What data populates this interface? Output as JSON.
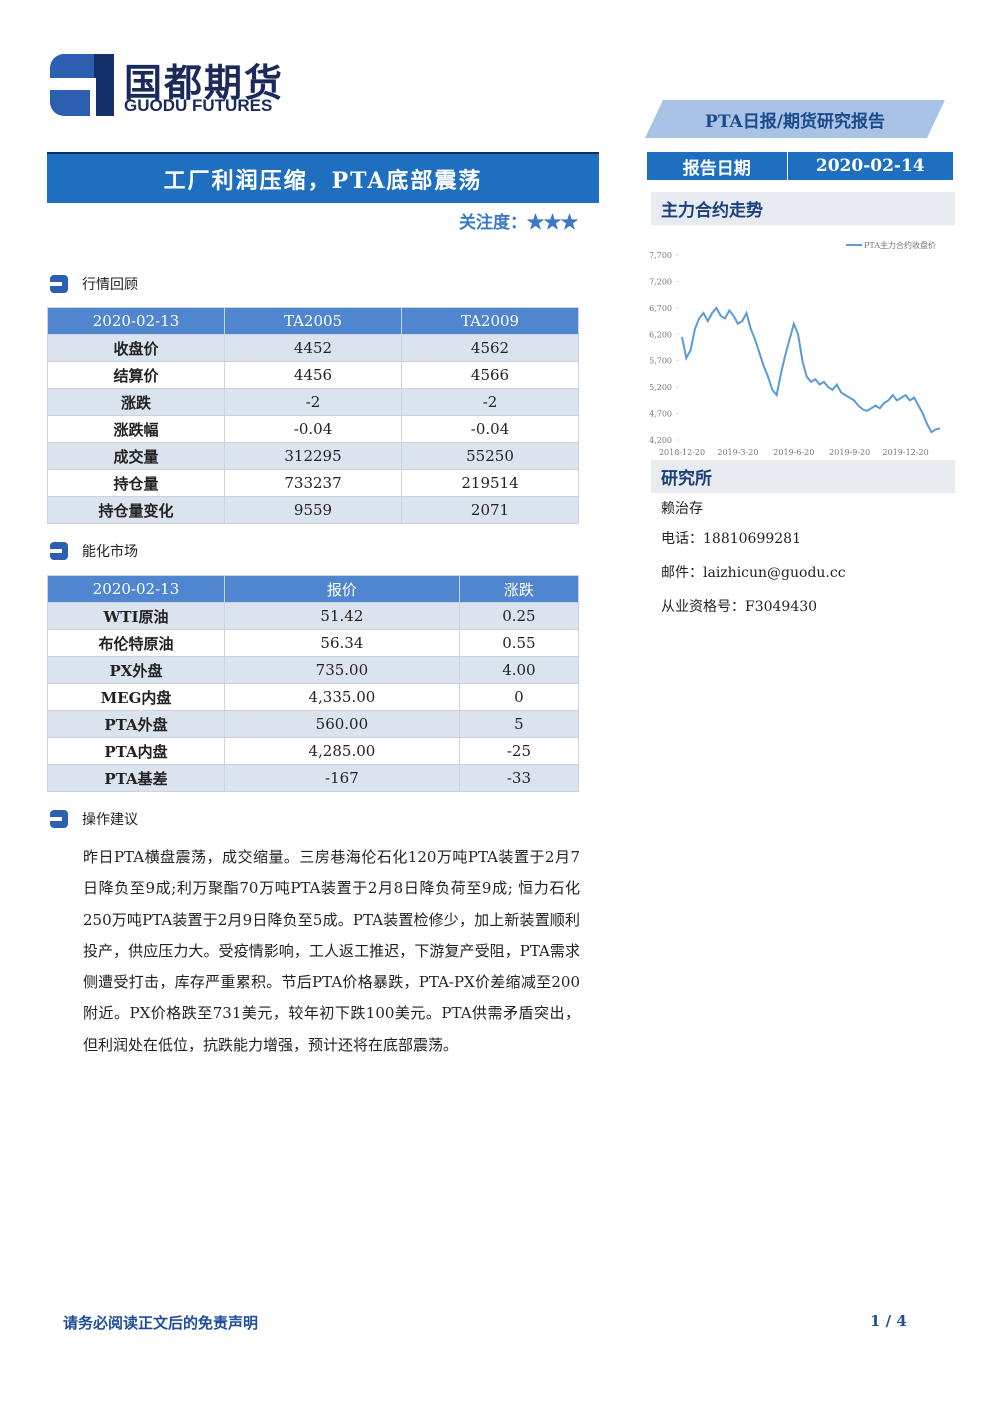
{
  "header": {
    "logo_cn": "国都期货",
    "logo_en": "GUODU FUTURES",
    "report_type": "PTA日报/期货研究报告",
    "date_label": "报告日期",
    "date": "2020-02-14"
  },
  "title": "工厂利润压缩，PTA底部震荡",
  "attention": "关注度：★★★",
  "sections": [
    "行情回顾",
    "能化市场",
    "操作建议"
  ],
  "table1": {
    "header": [
      "2020-02-13",
      "TA2005",
      "TA2009"
    ],
    "rows": [
      [
        "收盘价",
        "4452",
        "4562"
      ],
      [
        "结算价",
        "4456",
        "4566"
      ],
      [
        "涨跌",
        "-2",
        "-2"
      ],
      [
        "涨跌幅",
        "-0.04",
        "-0.04"
      ],
      [
        "成交量",
        "312295",
        "55250"
      ],
      [
        "持仓量",
        "733237",
        "219514"
      ],
      [
        "持仓量变化",
        "9559",
        "2071"
      ]
    ]
  },
  "table2": {
    "header": [
      "2020-02-13",
      "报价",
      "涨跌"
    ],
    "rows": [
      [
        "WTI原油",
        "51.42",
        "0.25"
      ],
      [
        "布伦特原油",
        "56.34",
        "0.55"
      ],
      [
        "PX外盘",
        "735.00",
        "4.00"
      ],
      [
        "MEG内盘",
        "4,335.00",
        "0"
      ],
      [
        "PTA外盘",
        "560.00",
        "5"
      ],
      [
        "PTA内盘",
        "4,285.00",
        "-25"
      ],
      [
        "PTA基差",
        "-167",
        "-33"
      ]
    ]
  },
  "chart": {
    "type": "line",
    "title": "主力合约走势",
    "categories": [
      "2018-12-20",
      null,
      null,
      null,
      null,
      null,
      null,
      null,
      null,
      null,
      null,
      null,
      null,
      "2019-3-20",
      null,
      null,
      null,
      null,
      null,
      null,
      null,
      null,
      null,
      null,
      null,
      null,
      "2019-6-20",
      null,
      null,
      null,
      null,
      null,
      null,
      null,
      null,
      null,
      null,
      null,
      null,
      "2019-9-20",
      null,
      null,
      null,
      null,
      null,
      null,
      null,
      null,
      null,
      null,
      null,
      null,
      "2019-12-20",
      null,
      null,
      null,
      null,
      null,
      null,
      null,
      null
    ],
    "series": [
      {
        "name": "PTA主力合约收盘价",
        "color": "#5b9bd5",
        "values": [
          6150,
          5750,
          5900,
          6300,
          6500,
          6600,
          6450,
          6600,
          6700,
          6550,
          6500,
          6650,
          6550,
          6400,
          6450,
          6600,
          6300,
          6100,
          5850,
          5600,
          5400,
          5150,
          5050,
          5450,
          5800,
          6100,
          6400,
          6200,
          5700,
          5400,
          5300,
          5350,
          5250,
          5300,
          5200,
          5150,
          5250,
          5100,
          5050,
          5000,
          4950,
          4850,
          4780,
          4750,
          4800,
          4850,
          4800,
          4900,
          4950,
          5050,
          4950,
          5000,
          5050,
          4950,
          5000,
          4850,
          4700,
          4500,
          4350,
          4400,
          4420
        ]
      }
    ],
    "ylim": [
      4200,
      7700
    ],
    "yticks": [
      {
        "value": 4200,
        "label": "4,200"
      },
      {
        "value": 4700,
        "label": "4,700"
      },
      {
        "value": 5200,
        "label": "5,200"
      },
      {
        "value": 5700,
        "label": "5,700"
      },
      {
        "value": 6200,
        "label": "6,200"
      },
      {
        "value": 6700,
        "label": "6,700"
      },
      {
        "value": 7200,
        "label": "7,200"
      },
      {
        "value": 7700,
        "label": "7,700"
      }
    ]
  },
  "institute": {
    "title": "研究所",
    "lines": [
      "赖治存",
      "电话：18810699281",
      "邮件：laizhicun@guodu.cc",
      "从业资格号：F3049430"
    ]
  },
  "paragraph": "昨日PTA横盘震荡，成交缩量。三房巷海伦石化120万吨PTA装置于2月7日降负至9成;利万聚酯70万吨PTA装置于2月8日降负荷至9成; 恒力石化250万吨PTA装置于2月9日降负至5成。PTA装置检修少，加上新装置顺利投产，供应压力大。受疫情影响，工人返工推迟，下游复产受阻，PTA需求侧遭受打击，库存严重累积。节后PTA价格暴跌，PTA-PX价差缩减至200附近。PX价格跌至731美元，较年初下跌100美元。PTA供需矛盾突出，但利润处在低位，抗跌能力增强，预计还将在底部震荡。",
  "footer": {
    "disclaimer": "请务必阅读正文后的免责声明",
    "page": "1 / 4"
  }
}
